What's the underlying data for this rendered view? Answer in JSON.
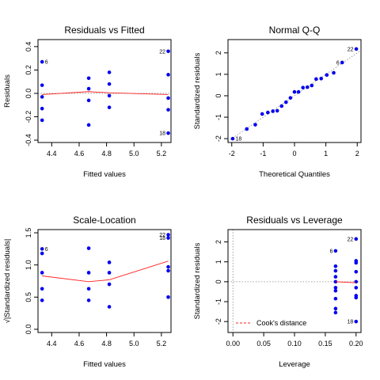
{
  "chart_data": [
    {
      "id": "rvf",
      "type": "scatter",
      "title": "Residuals vs Fitted",
      "xlabel": "Fitted values",
      "ylabel": "Residuals",
      "xlim": [
        4.3,
        5.27
      ],
      "ylim": [
        -0.42,
        0.46
      ],
      "xticks": [
        4.4,
        4.6,
        4.8,
        5.0,
        5.2
      ],
      "xtick_labels": [
        "4.4",
        "4.6",
        "4.8",
        "5.0",
        "5.2"
      ],
      "yticks": [
        -0.4,
        -0.2,
        0.0,
        0.2,
        0.4
      ],
      "ytick_labels": [
        "-0.4",
        "-0.2",
        "0.0",
        "0.2",
        "0.4"
      ],
      "ytick_rotate": true,
      "grid": false,
      "zero_line": true,
      "points": [
        {
          "x": 4.33,
          "y": 0.27,
          "label": "6"
        },
        {
          "x": 4.33,
          "y": 0.07
        },
        {
          "x": 4.33,
          "y": -0.03
        },
        {
          "x": 4.33,
          "y": -0.13
        },
        {
          "x": 4.33,
          "y": -0.23
        },
        {
          "x": 4.67,
          "y": 0.13
        },
        {
          "x": 4.67,
          "y": 0.04
        },
        {
          "x": 4.67,
          "y": -0.06
        },
        {
          "x": 4.67,
          "y": -0.27
        },
        {
          "x": 4.82,
          "y": 0.18
        },
        {
          "x": 4.82,
          "y": 0.08
        },
        {
          "x": 4.82,
          "y": -0.02
        },
        {
          "x": 4.82,
          "y": -0.12
        },
        {
          "x": 5.25,
          "y": 0.36,
          "label": "22"
        },
        {
          "x": 5.25,
          "y": 0.16
        },
        {
          "x": 5.25,
          "y": -0.04
        },
        {
          "x": 5.25,
          "y": -0.14
        },
        {
          "x": 5.25,
          "y": -0.34,
          "label": "18"
        }
      ],
      "smooth": [
        [
          4.33,
          -0.01
        ],
        [
          4.67,
          0.015
        ],
        [
          4.82,
          0.005
        ],
        [
          5.25,
          -0.01
        ]
      ]
    },
    {
      "id": "qq",
      "type": "scatter",
      "title": "Normal Q-Q",
      "xlabel": "Theoretical Quantiles",
      "ylabel": "Standardized residuals",
      "xlim": [
        -2.12,
        2.12
      ],
      "ylim": [
        -2.18,
        2.62
      ],
      "xticks": [
        -2,
        -1,
        0,
        1,
        2
      ],
      "xtick_labels": [
        "-2",
        "-1",
        "0",
        "1",
        "2"
      ],
      "yticks": [
        -2,
        -1,
        0,
        1,
        2
      ],
      "ytick_labels": [
        "-2",
        "-1",
        "0",
        "1",
        "2"
      ],
      "ytick_rotate": true,
      "grid": false,
      "ref_line": [
        [
          -2.12,
          -2.12
        ],
        [
          2.12,
          2.12
        ]
      ],
      "points": [
        {
          "x": -1.97,
          "y": -2.0,
          "label": "18"
        },
        {
          "x": -1.52,
          "y": -1.55
        },
        {
          "x": -1.25,
          "y": -1.35
        },
        {
          "x": -1.03,
          "y": -0.85
        },
        {
          "x": -0.85,
          "y": -0.78
        },
        {
          "x": -0.69,
          "y": -0.72
        },
        {
          "x": -0.55,
          "y": -0.7
        },
        {
          "x": -0.41,
          "y": -0.48
        },
        {
          "x": -0.27,
          "y": -0.3
        },
        {
          "x": -0.13,
          "y": -0.1
        },
        {
          "x": 0.0,
          "y": 0.18
        },
        {
          "x": 0.13,
          "y": 0.18
        },
        {
          "x": 0.27,
          "y": 0.38
        },
        {
          "x": 0.41,
          "y": 0.4
        },
        {
          "x": 0.55,
          "y": 0.48
        },
        {
          "x": 0.69,
          "y": 0.78
        },
        {
          "x": 0.85,
          "y": 0.8
        },
        {
          "x": 1.03,
          "y": 0.97
        },
        {
          "x": 1.25,
          "y": 1.07
        },
        {
          "x": 1.52,
          "y": 1.55,
          "label": "6"
        },
        {
          "x": 1.97,
          "y": 2.18,
          "label": "22"
        }
      ]
    },
    {
      "id": "sl",
      "type": "scatter",
      "title": "Scale-Location",
      "xlabel": "Fitted values",
      "ylabel": "√|Standardized residuals|",
      "xlim": [
        4.3,
        5.27
      ],
      "ylim": [
        -0.05,
        1.55
      ],
      "xticks": [
        4.4,
        4.6,
        4.8,
        5.0,
        5.2
      ],
      "xtick_labels": [
        "4.4",
        "4.6",
        "4.8",
        "5.0",
        "5.2"
      ],
      "yticks": [
        0.0,
        0.5,
        1.0,
        1.5
      ],
      "ytick_labels": [
        "0.0",
        "0.5",
        "1.0",
        "1.5"
      ],
      "ytick_rotate": true,
      "grid": false,
      "points": [
        {
          "x": 4.33,
          "y": 1.25,
          "label": "6"
        },
        {
          "x": 4.33,
          "y": 1.18
        },
        {
          "x": 4.33,
          "y": 0.88
        },
        {
          "x": 4.33,
          "y": 0.63
        },
        {
          "x": 4.33,
          "y": 0.45
        },
        {
          "x": 4.67,
          "y": 1.26
        },
        {
          "x": 4.67,
          "y": 0.88
        },
        {
          "x": 4.67,
          "y": 0.63
        },
        {
          "x": 4.67,
          "y": 0.45
        },
        {
          "x": 4.82,
          "y": 1.04
        },
        {
          "x": 4.82,
          "y": 0.88
        },
        {
          "x": 4.82,
          "y": 0.7
        },
        {
          "x": 4.82,
          "y": 0.35
        },
        {
          "x": 5.25,
          "y": 1.47,
          "label": "22"
        },
        {
          "x": 5.25,
          "y": 1.42,
          "label": "18"
        },
        {
          "x": 5.25,
          "y": 0.97
        },
        {
          "x": 5.25,
          "y": 0.91
        },
        {
          "x": 5.25,
          "y": 0.5
        }
      ],
      "smooth": [
        [
          4.33,
          0.83
        ],
        [
          4.67,
          0.74
        ],
        [
          4.82,
          0.77
        ],
        [
          5.25,
          1.06
        ]
      ]
    },
    {
      "id": "rvl",
      "type": "scatter",
      "title": "Residuals vs Leverage",
      "xlabel": "Leverage",
      "ylabel": "Standardized residuals",
      "xlim": [
        -0.008,
        0.208
      ],
      "ylim": [
        -2.55,
        2.62
      ],
      "xticks": [
        0.0,
        0.05,
        0.1,
        0.15,
        0.2
      ],
      "xtick_labels": [
        "0.00",
        "0.05",
        "0.10",
        "0.15",
        "0.20"
      ],
      "yticks": [
        -2,
        -1,
        0,
        1,
        2
      ],
      "ytick_labels": [
        "-2",
        "-1",
        "0",
        "1",
        "2"
      ],
      "ytick_rotate": true,
      "grid": false,
      "zero_line": true,
      "vertical_line": 0.0,
      "legend": {
        "label": "Cook's distance",
        "position": "bottom-left"
      },
      "points": [
        {
          "x": 0.1667,
          "y": 1.55,
          "label": "6"
        },
        {
          "x": 0.1667,
          "y": 0.78
        },
        {
          "x": 0.1667,
          "y": 0.55
        },
        {
          "x": 0.1667,
          "y": 0.25
        },
        {
          "x": 0.1667,
          "y": 0.0
        },
        {
          "x": 0.1667,
          "y": -0.3
        },
        {
          "x": 0.1667,
          "y": -0.45
        },
        {
          "x": 0.1667,
          "y": -0.85
        },
        {
          "x": 0.1667,
          "y": -1.35
        },
        {
          "x": 0.1667,
          "y": -1.55
        },
        {
          "x": 0.2,
          "y": 2.15,
          "label": "22"
        },
        {
          "x": 0.2,
          "y": 1.05
        },
        {
          "x": 0.2,
          "y": 0.95
        },
        {
          "x": 0.2,
          "y": 0.5
        },
        {
          "x": 0.2,
          "y": 0.0
        },
        {
          "x": 0.2,
          "y": -0.3
        },
        {
          "x": 0.2,
          "y": -0.7
        },
        {
          "x": 0.2,
          "y": -0.8
        },
        {
          "x": 0.2,
          "y": -2.0,
          "label": "18"
        }
      ],
      "smooth": [
        [
          0.1667,
          0.0
        ],
        [
          0.2,
          -0.05
        ]
      ]
    }
  ]
}
